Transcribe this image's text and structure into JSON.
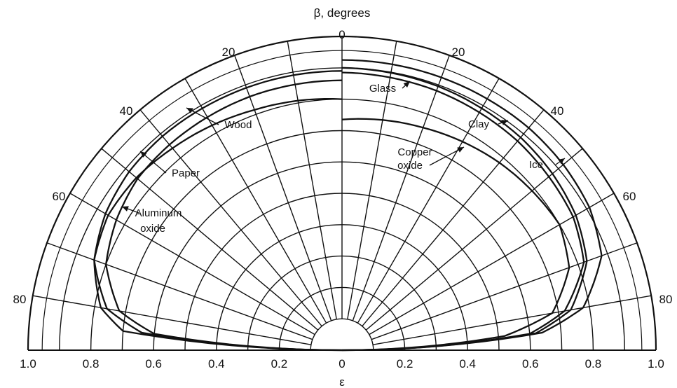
{
  "chart_data": {
    "type": "polar",
    "title": "β, degrees",
    "xlabel": "ε",
    "angle_ticks": [
      "0",
      "20",
      "40",
      "60",
      "80",
      "20",
      "40",
      "60",
      "80"
    ],
    "radial_ticks": [
      "1.0",
      "0.8",
      "0.6",
      "0.4",
      "0.2",
      "0",
      "0.2",
      "0.4",
      "0.6",
      "0.8",
      "1.0"
    ],
    "series": [
      {
        "name": "Glass",
        "side": "right",
        "points": [
          [
            0,
            0.885
          ],
          [
            20,
            0.88
          ],
          [
            40,
            0.87
          ],
          [
            50,
            0.86
          ],
          [
            60,
            0.85
          ],
          [
            70,
            0.82
          ],
          [
            80,
            0.72
          ],
          [
            85,
            0.6
          ],
          [
            90,
            0.0
          ]
        ]
      },
      {
        "name": "Clay",
        "side": "right",
        "points": [
          [
            0,
            0.9
          ],
          [
            20,
            0.895
          ],
          [
            40,
            0.885
          ],
          [
            50,
            0.875
          ],
          [
            60,
            0.86
          ],
          [
            70,
            0.83
          ],
          [
            80,
            0.74
          ],
          [
            85,
            0.62
          ],
          [
            90,
            0.0
          ]
        ]
      },
      {
        "name": "Ice",
        "side": "right",
        "points": [
          [
            0,
            0.925
          ],
          [
            20,
            0.925
          ],
          [
            40,
            0.925
          ],
          [
            50,
            0.92
          ],
          [
            60,
            0.91
          ],
          [
            70,
            0.88
          ],
          [
            80,
            0.78
          ],
          [
            85,
            0.64
          ],
          [
            90,
            0.0
          ]
        ]
      },
      {
        "name": "Copper oxide",
        "side": "right",
        "points": [
          [
            0,
            0.735
          ],
          [
            20,
            0.755
          ],
          [
            40,
            0.78
          ],
          [
            50,
            0.79
          ],
          [
            60,
            0.8
          ],
          [
            70,
            0.77
          ],
          [
            80,
            0.68
          ],
          [
            85,
            0.52
          ],
          [
            90,
            0.0
          ]
        ]
      },
      {
        "name": "Wood",
        "side": "left",
        "points": [
          [
            0,
            0.86
          ],
          [
            20,
            0.86
          ],
          [
            40,
            0.855
          ],
          [
            50,
            0.85
          ],
          [
            60,
            0.83
          ],
          [
            70,
            0.8
          ],
          [
            80,
            0.72
          ],
          [
            85,
            0.6
          ],
          [
            90,
            0.0
          ]
        ]
      },
      {
        "name": "Paper",
        "side": "left",
        "points": [
          [
            0,
            0.89
          ],
          [
            20,
            0.89
          ],
          [
            40,
            0.89
          ],
          [
            50,
            0.885
          ],
          [
            60,
            0.87
          ],
          [
            70,
            0.84
          ],
          [
            80,
            0.76
          ],
          [
            85,
            0.64
          ],
          [
            90,
            0.0
          ]
        ]
      },
      {
        "name": "Aluminum oxide",
        "side": "left",
        "points": [
          [
            0,
            0.8
          ],
          [
            20,
            0.815
          ],
          [
            40,
            0.84
          ],
          [
            50,
            0.855
          ],
          [
            60,
            0.86
          ],
          [
            70,
            0.84
          ],
          [
            80,
            0.78
          ],
          [
            85,
            0.7
          ],
          [
            90,
            0.0
          ]
        ]
      }
    ],
    "labels": [
      {
        "text": "Glass",
        "series": "Glass"
      },
      {
        "text": "Clay",
        "series": "Clay"
      },
      {
        "text": "Ice",
        "series": "Ice"
      },
      {
        "text": "Copper",
        "series": "Copper oxide"
      },
      {
        "text": "oxide",
        "series": "Copper oxide"
      },
      {
        "text": "Wood",
        "series": "Wood"
      },
      {
        "text": "Paper",
        "series": "Paper"
      },
      {
        "text": "Aluminum",
        "series": "Aluminum oxide"
      },
      {
        "text": "oxide",
        "series": "Aluminum oxide"
      }
    ],
    "grid": true,
    "rlim": [
      0,
      1.0
    ],
    "angle_range_degrees": [
      0,
      90
    ]
  }
}
